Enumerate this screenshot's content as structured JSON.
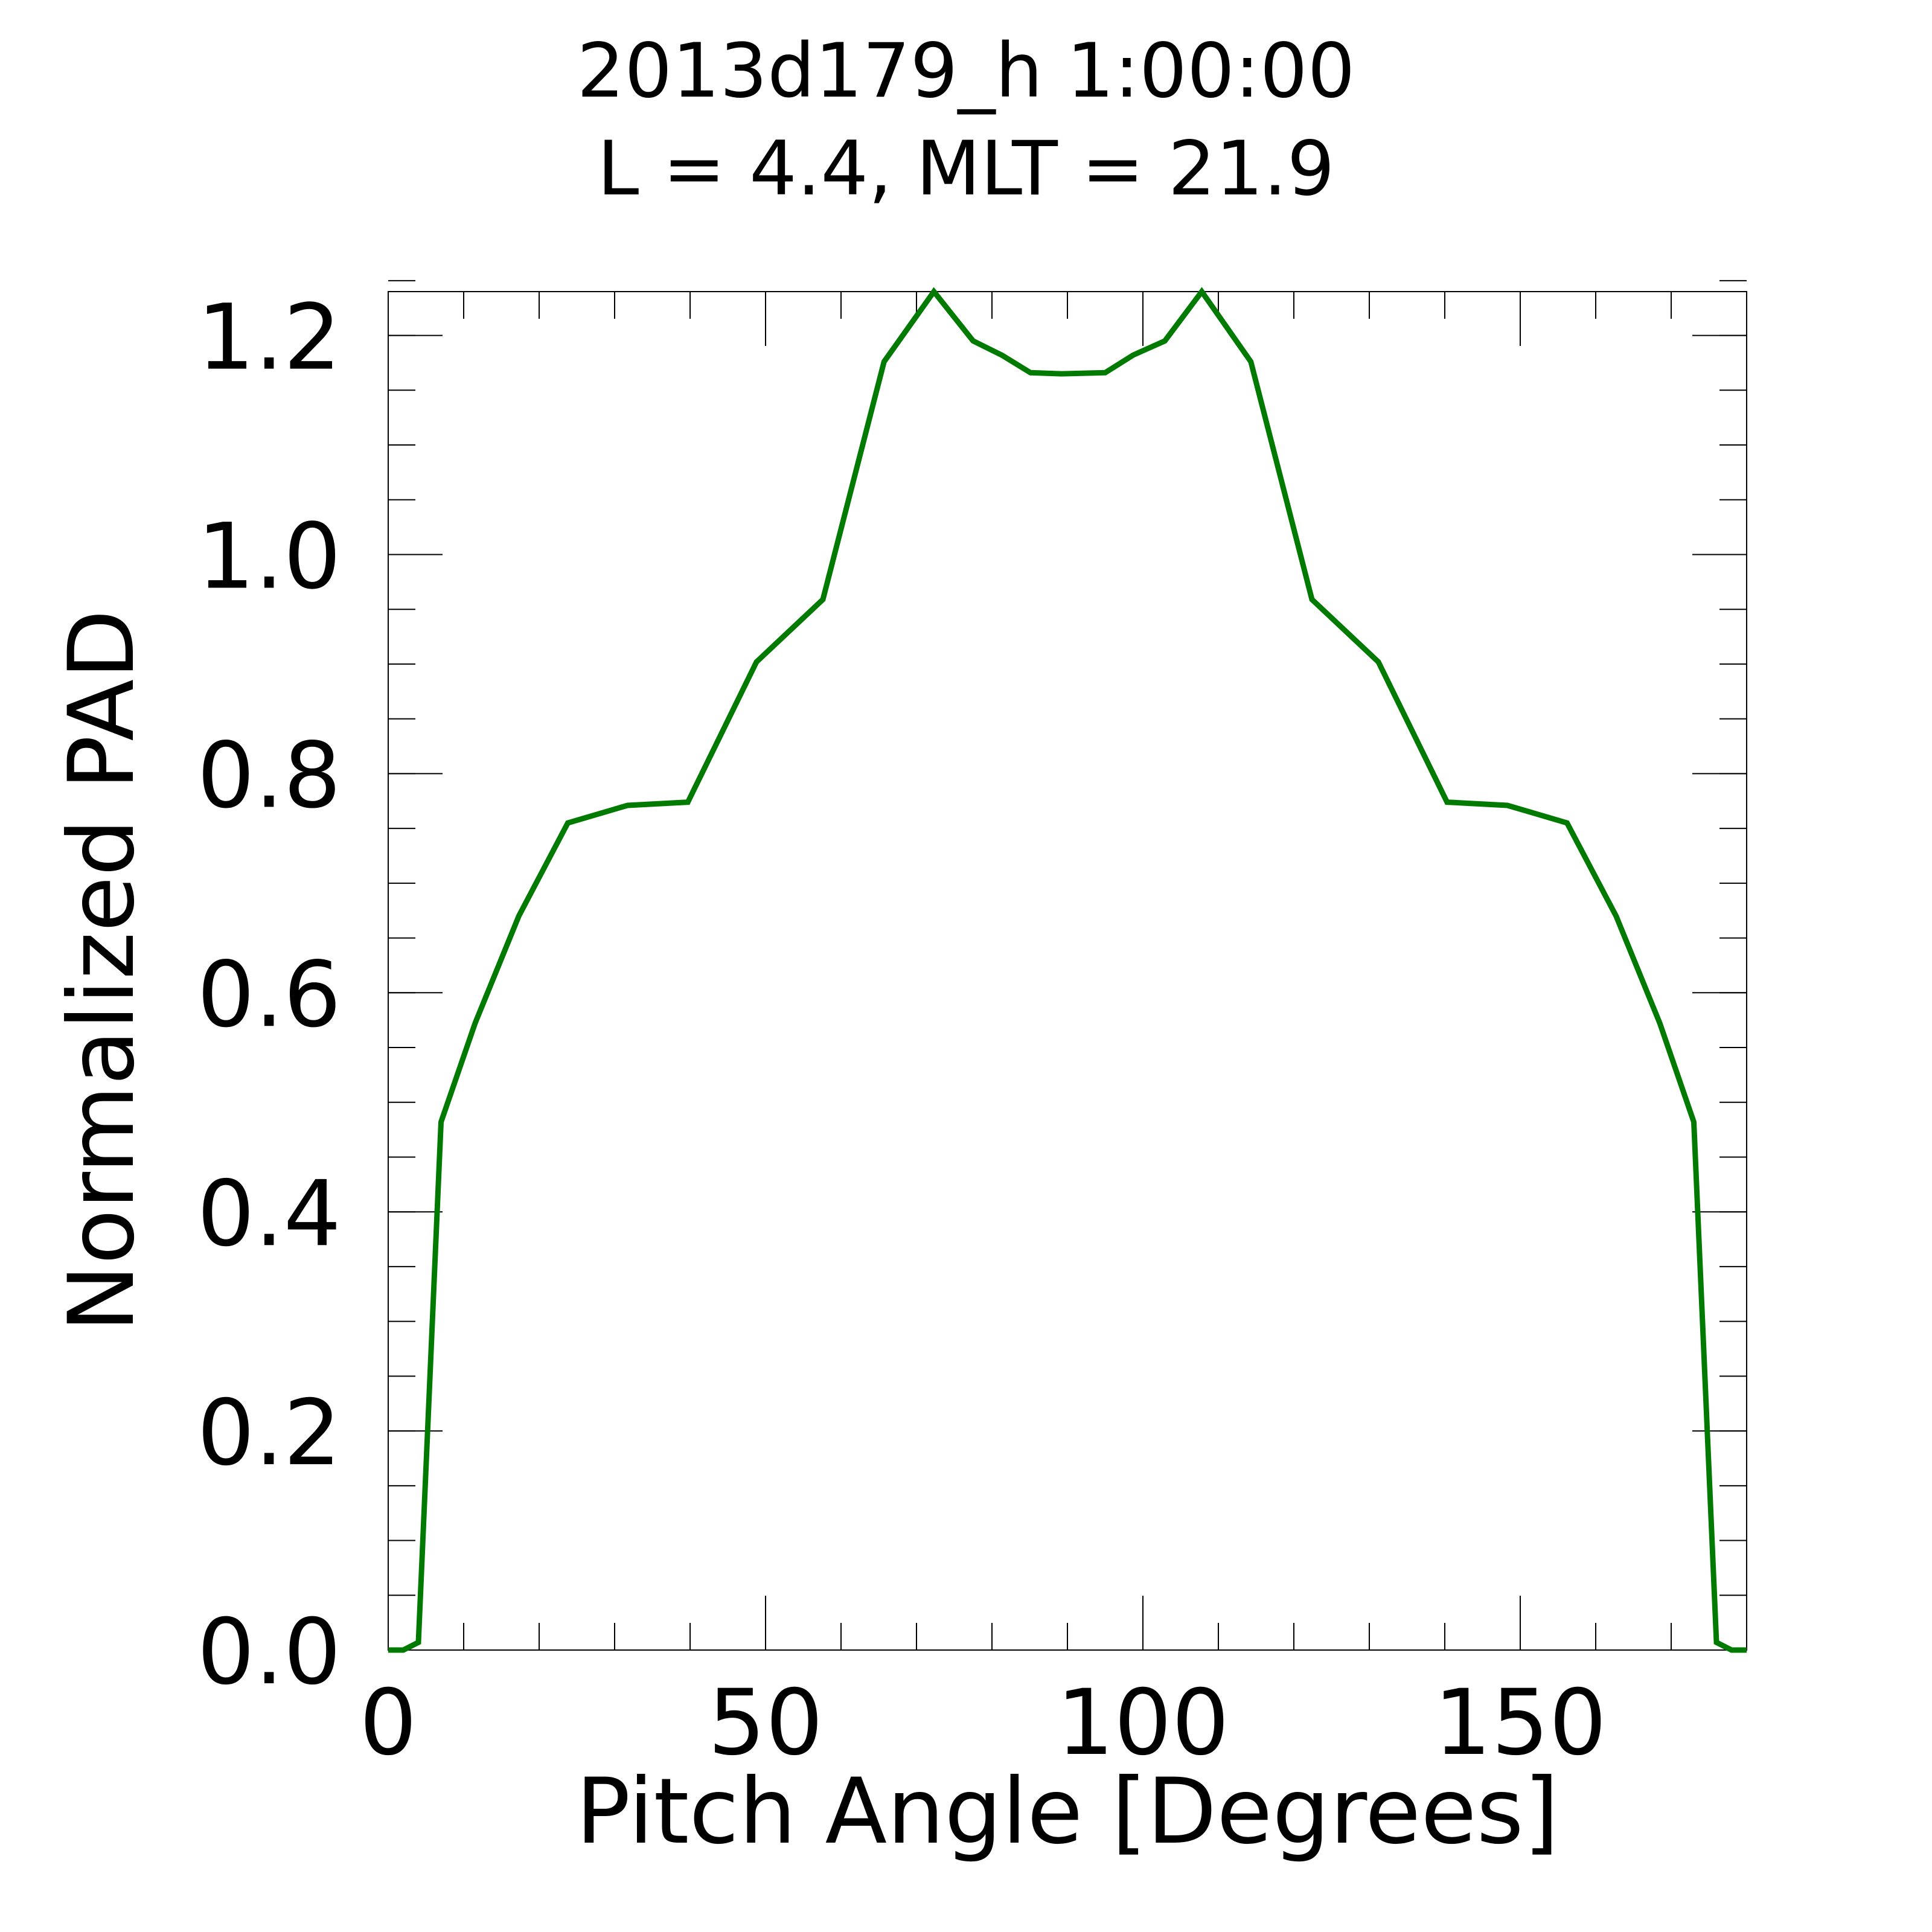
{
  "chart_data": {
    "type": "line",
    "title": "2013d179_h   1:00:00",
    "subtitle": "L = 4.4, MLT = 21.9",
    "xlabel": "Pitch Angle [Degrees]",
    "ylabel": "Normalized PAD",
    "xlim": [
      0,
      180
    ],
    "ylim": [
      0,
      1.24
    ],
    "xticks": [
      0,
      50,
      100,
      150
    ],
    "xtick_labels": [
      "0",
      "50",
      "100",
      "150"
    ],
    "yticks": [
      0,
      0.2,
      0.4,
      0.6,
      0.8,
      1.0,
      1.2
    ],
    "ytick_labels": [
      "0.0",
      "0.2",
      "0.4",
      "0.6",
      "0.8",
      "1.0",
      "1.2"
    ],
    "x_minor_step": 10,
    "y_minor_step": 0.05,
    "grid": false,
    "line_color": "#007a00",
    "series": [
      {
        "x": [
          0,
          2,
          4,
          7,
          11.5,
          17.3,
          23.8,
          31.7,
          39.7,
          48.8,
          57.6,
          65.7,
          72.3,
          77.5,
          81.3,
          85.1,
          89.2,
          95,
          98.7,
          102.9,
          107.8,
          114.3,
          122.4,
          131.2,
          140.3,
          148.3,
          156.2,
          162.7,
          168.5,
          173,
          176,
          178,
          180
        ],
        "y": [
          0,
          0,
          0.007,
          0.482,
          0.572,
          0.67,
          0.755,
          0.771,
          0.774,
          0.902,
          0.959,
          1.176,
          1.24,
          1.195,
          1.182,
          1.166,
          1.165,
          1.166,
          1.182,
          1.195,
          1.24,
          1.176,
          0.959,
          0.902,
          0.774,
          0.771,
          0.755,
          0.67,
          0.572,
          0.482,
          0.007,
          0,
          0
        ]
      }
    ]
  }
}
